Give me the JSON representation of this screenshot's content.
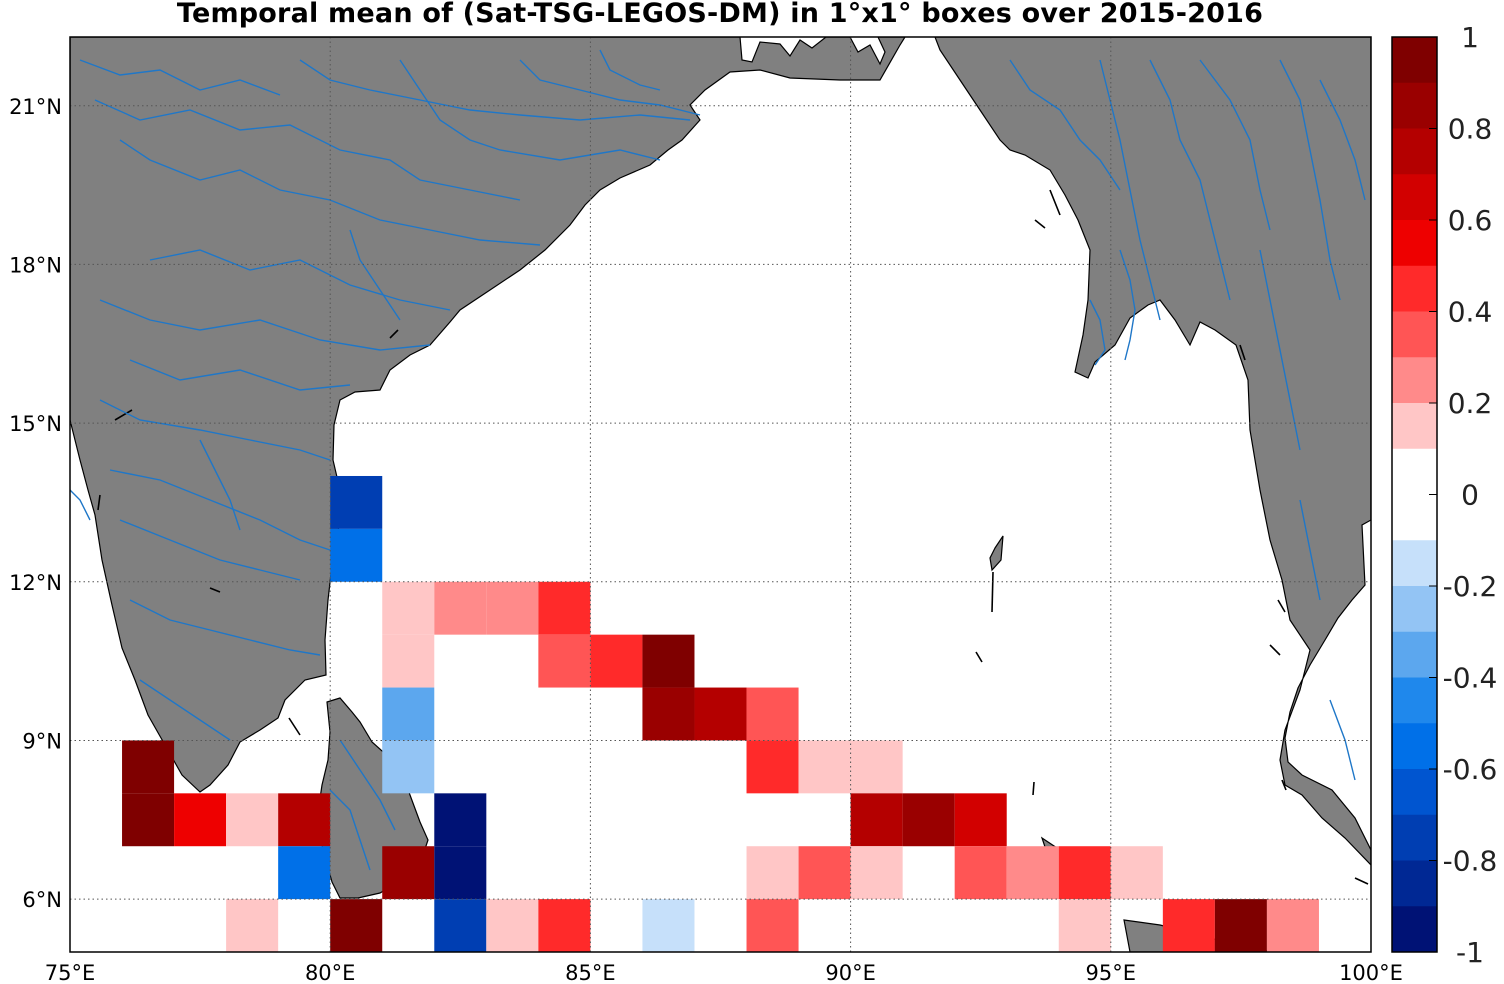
{
  "title": "Temporal mean of (Sat-TSG-LEGOS-DM) in 1°x1° boxes over 2015-2016",
  "map": {
    "lon_range": [
      75,
      100
    ],
    "lat_range": [
      5,
      22.3
    ],
    "grid": "dotted",
    "land_color": "#808080",
    "river_color": "#1f77c8",
    "ocean_color": "#ffffff",
    "x_ticks": [
      {
        "value": 75,
        "label": "75°E"
      },
      {
        "value": 80,
        "label": "80°E"
      },
      {
        "value": 85,
        "label": "85°E"
      },
      {
        "value": 90,
        "label": "90°E"
      },
      {
        "value": 95,
        "label": "95°E"
      },
      {
        "value": 100,
        "label": "100°E"
      }
    ],
    "y_ticks": [
      {
        "value": 6,
        "label": "6°N"
      },
      {
        "value": 9,
        "label": "9°N"
      },
      {
        "value": 12,
        "label": "12°N"
      },
      {
        "value": 15,
        "label": "15°N"
      },
      {
        "value": 18,
        "label": "18°N"
      },
      {
        "value": 21,
        "label": "21°N"
      }
    ]
  },
  "colorbar": {
    "min": -1,
    "max": 1,
    "step": 0.1,
    "ticks": [
      "1",
      "0.8",
      "0.6",
      "0.4",
      "0.2",
      "0",
      "-0.2",
      "-0.4",
      "-0.6",
      "-0.8",
      "-1"
    ],
    "colors_top_to_bottom": [
      "#7f0000",
      "#9a0000",
      "#b40000",
      "#d20000",
      "#ee0000",
      "#ff2a2a",
      "#ff5555",
      "#ff8a8a",
      "#ffc6c6",
      "#ffffff",
      "#ffffff",
      "#c6e0fa",
      "#93c4f4",
      "#5ca7ee",
      "#1f88ec",
      "#0070e8",
      "#0055d0",
      "#003eb2",
      "#002894",
      "#001275"
    ]
  },
  "chart_data": {
    "type": "heatmap",
    "title": "Temporal mean of (Sat-TSG-LEGOS-DM) in 1°x1° boxes over 2015-2016",
    "cell_size_deg": 1,
    "value_range": [
      -1,
      1
    ],
    "cells": [
      {
        "lon": 80,
        "lat": 13,
        "value": -0.75
      },
      {
        "lon": 80,
        "lat": 12,
        "value": -0.55
      },
      {
        "lon": 81,
        "lat": 11,
        "value": 0.15
      },
      {
        "lon": 82,
        "lat": 11,
        "value": 0.25
      },
      {
        "lon": 83,
        "lat": 11,
        "value": 0.25
      },
      {
        "lon": 84,
        "lat": 11,
        "value": 0.45
      },
      {
        "lon": 81,
        "lat": 10,
        "value": 0.15
      },
      {
        "lon": 84,
        "lat": 10,
        "value": 0.35
      },
      {
        "lon": 85,
        "lat": 10,
        "value": 0.45
      },
      {
        "lon": 86,
        "lat": 10,
        "value": 0.95
      },
      {
        "lon": 81,
        "lat": 9,
        "value": -0.35
      },
      {
        "lon": 86,
        "lat": 9,
        "value": 0.85
      },
      {
        "lon": 87,
        "lat": 9,
        "value": 0.75
      },
      {
        "lon": 88,
        "lat": 9,
        "value": 0.35
      },
      {
        "lon": 76,
        "lat": 8,
        "value": 0.95
      },
      {
        "lon": 81,
        "lat": 8,
        "value": -0.25
      },
      {
        "lon": 88,
        "lat": 8,
        "value": 0.45
      },
      {
        "lon": 89,
        "lat": 8,
        "value": 0.15
      },
      {
        "lon": 90,
        "lat": 8,
        "value": 0.15
      },
      {
        "lon": 76,
        "lat": 7,
        "value": 0.95
      },
      {
        "lon": 77,
        "lat": 7,
        "value": 0.55
      },
      {
        "lon": 78,
        "lat": 7,
        "value": 0.15
      },
      {
        "lon": 79,
        "lat": 7,
        "value": 0.75
      },
      {
        "lon": 82,
        "lat": 7,
        "value": -0.95
      },
      {
        "lon": 90,
        "lat": 7,
        "value": 0.75
      },
      {
        "lon": 91,
        "lat": 7,
        "value": 0.85
      },
      {
        "lon": 92,
        "lat": 7,
        "value": 0.65
      },
      {
        "lon": 79,
        "lat": 6,
        "value": -0.55
      },
      {
        "lon": 81,
        "lat": 6,
        "value": 0.85
      },
      {
        "lon": 82,
        "lat": 6,
        "value": -0.95
      },
      {
        "lon": 88,
        "lat": 6,
        "value": 0.15
      },
      {
        "lon": 89,
        "lat": 6,
        "value": 0.35
      },
      {
        "lon": 90,
        "lat": 6,
        "value": 0.15
      },
      {
        "lon": 92,
        "lat": 6,
        "value": 0.35
      },
      {
        "lon": 93,
        "lat": 6,
        "value": 0.25
      },
      {
        "lon": 94,
        "lat": 6,
        "value": 0.45
      },
      {
        "lon": 95,
        "lat": 6,
        "value": 0.15
      },
      {
        "lon": 78,
        "lat": 5,
        "value": 0.15
      },
      {
        "lon": 80,
        "lat": 5,
        "value": 0.95
      },
      {
        "lon": 82,
        "lat": 5,
        "value": -0.75
      },
      {
        "lon": 83,
        "lat": 5,
        "value": 0.15
      },
      {
        "lon": 84,
        "lat": 5,
        "value": 0.45
      },
      {
        "lon": 86,
        "lat": 5,
        "value": -0.15
      },
      {
        "lon": 88,
        "lat": 5,
        "value": 0.35
      },
      {
        "lon": 94,
        "lat": 5,
        "value": 0.15
      },
      {
        "lon": 96,
        "lat": 5,
        "value": 0.45
      },
      {
        "lon": 97,
        "lat": 5,
        "value": 0.95
      },
      {
        "lon": 98,
        "lat": 5,
        "value": 0.25
      }
    ]
  }
}
